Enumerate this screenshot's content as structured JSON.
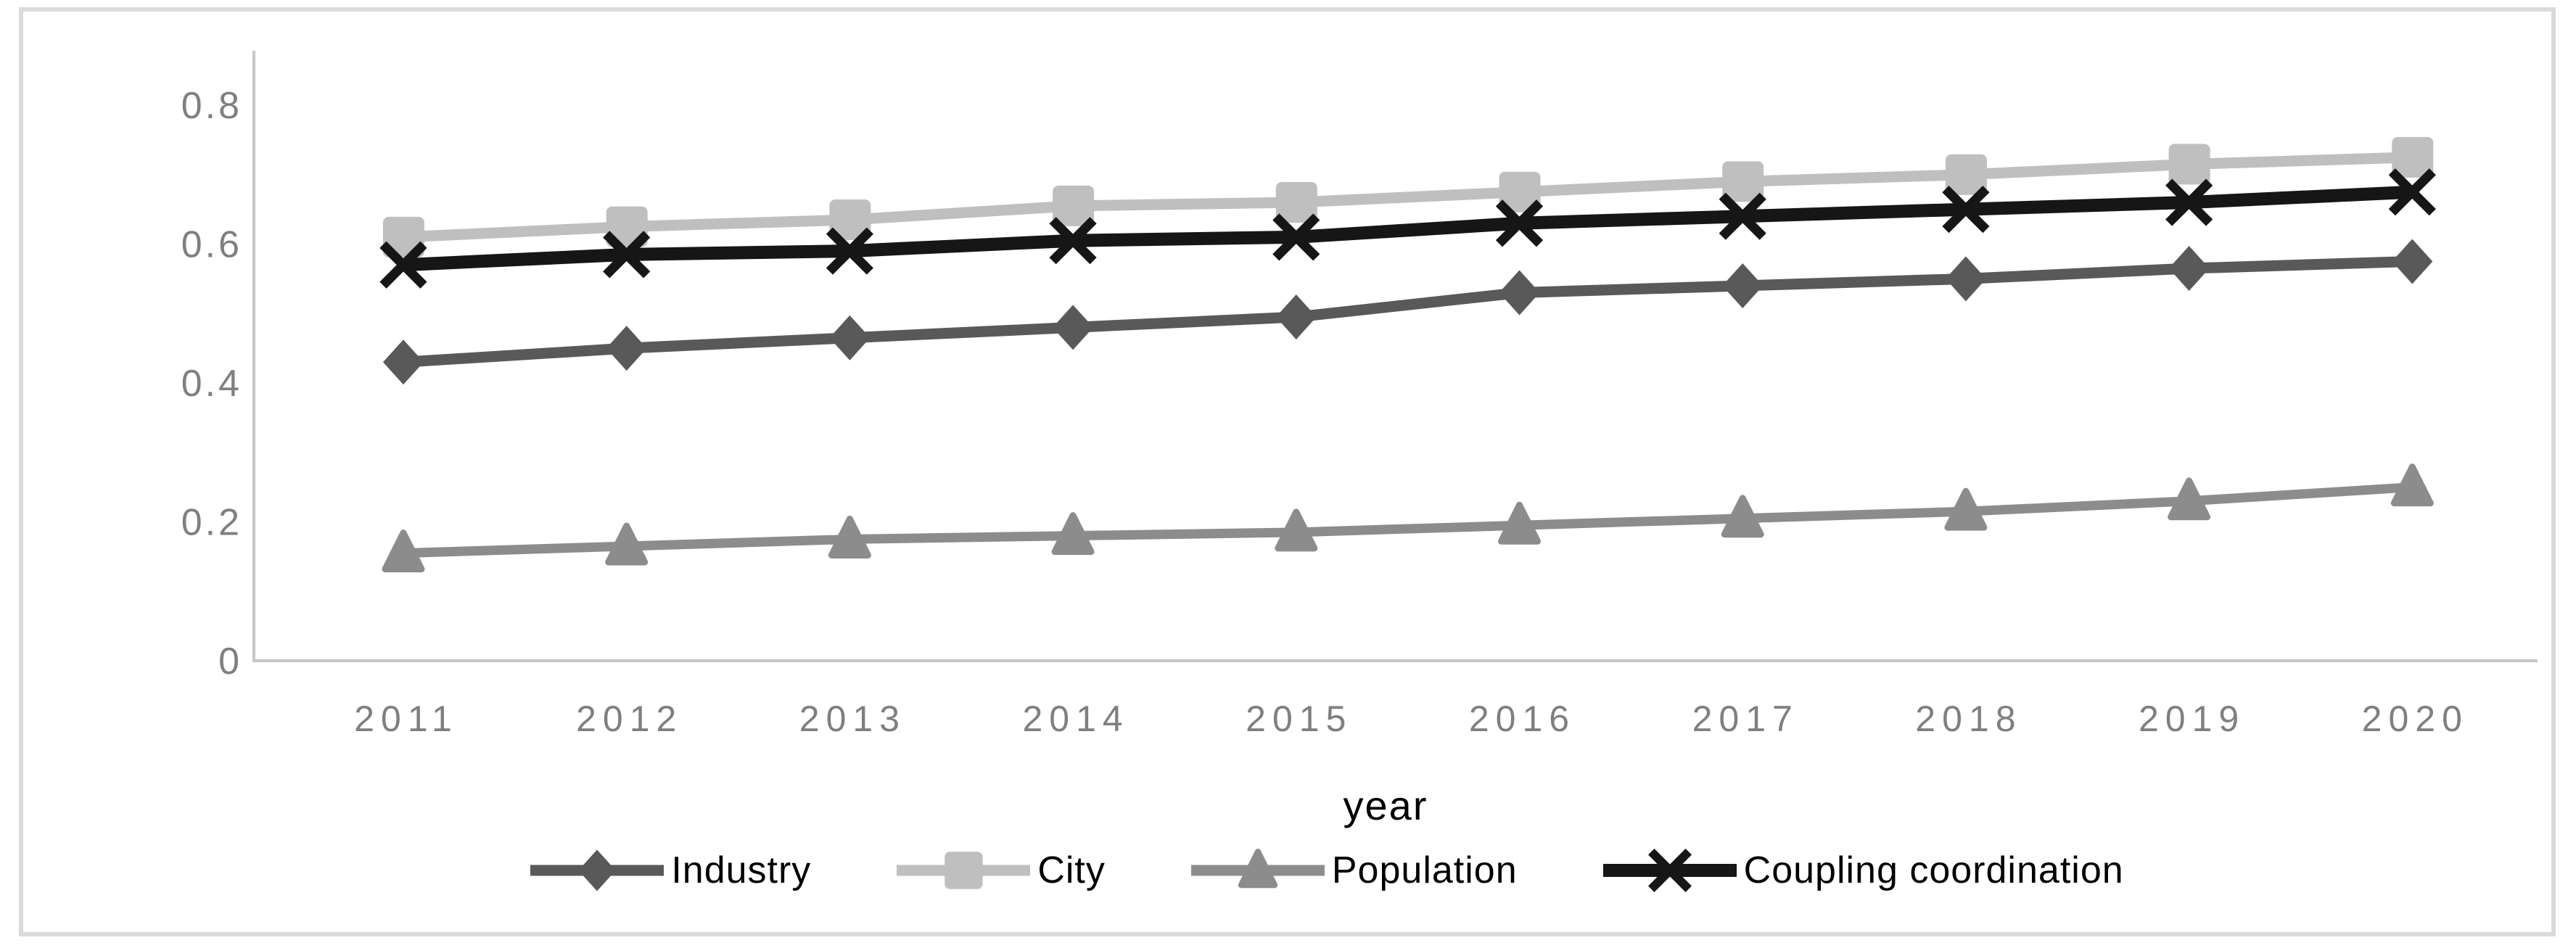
{
  "chart_data": {
    "type": "line",
    "title": "",
    "xlabel": "year",
    "ylabel": "",
    "x_labels": [
      "2011",
      "2012",
      "2013",
      "2014",
      "2015",
      "2016",
      "2017",
      "2018",
      "2019",
      "2020"
    ],
    "ylim": [
      0,
      0.8
    ],
    "yticks": [
      {
        "label": "0",
        "value": 0
      },
      {
        "label": "0.2",
        "value": 0.2
      },
      {
        "label": "0.4",
        "value": 0.4
      },
      {
        "label": "0.6",
        "value": 0.6
      },
      {
        "label": "0.8",
        "value": 0.8
      }
    ],
    "grid": false,
    "legend_position": "bottom",
    "axis_color": "#c6c6c6",
    "tick_label_color": "#7f7f7f",
    "series": [
      {
        "name": "Industry",
        "marker": "diamond",
        "color": "#595959",
        "values": [
          0.43,
          0.45,
          0.465,
          0.48,
          0.495,
          0.53,
          0.54,
          0.55,
          0.565,
          0.575
        ]
      },
      {
        "name": "City",
        "marker": "square",
        "color": "#bfbfbf",
        "values": [
          0.61,
          0.625,
          0.635,
          0.655,
          0.66,
          0.675,
          0.69,
          0.7,
          0.715,
          0.725
        ]
      },
      {
        "name": "Population",
        "marker": "triangle",
        "color": "#8c8c8c",
        "values": [
          0.155,
          0.165,
          0.175,
          0.18,
          0.185,
          0.195,
          0.205,
          0.215,
          0.23,
          0.25
        ]
      },
      {
        "name": "Coupling coordination",
        "marker": "x",
        "color": "#161616",
        "values": [
          0.57,
          0.585,
          0.59,
          0.605,
          0.61,
          0.63,
          0.64,
          0.65,
          0.66,
          0.675
        ]
      }
    ]
  }
}
